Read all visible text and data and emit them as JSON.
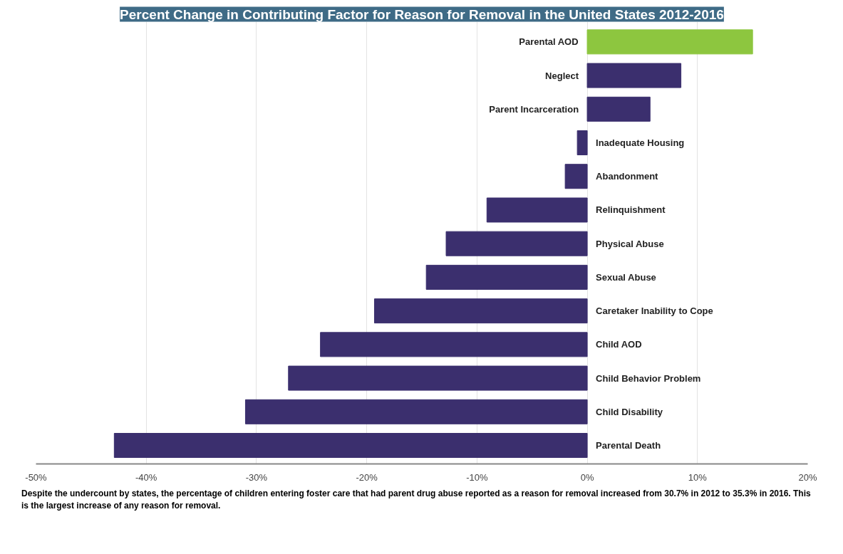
{
  "chart_data": {
    "type": "bar",
    "orientation": "horizontal",
    "title": "Percent Change in Contributing Factor for Reason for Removal in the United States 2012-2016",
    "categories": [
      "Parental AOD",
      "Neglect",
      "Parent Incarceration",
      "Inadequate Housing",
      "Abandonment",
      "Relinquishment",
      "Physical Abuse",
      "Sexual Abuse",
      "Caretaker Inability to Cope",
      "Child AOD",
      "Child Behavior Problem",
      "Child Disability",
      "Parental Death"
    ],
    "values": [
      15.0,
      8.5,
      5.7,
      -0.9,
      -2.0,
      -9.1,
      -12.8,
      -14.6,
      -19.3,
      -24.2,
      -27.1,
      -31.0,
      -42.9
    ],
    "colors": [
      "#8dc63f",
      "#3b2f6e",
      "#3b2f6e",
      "#3b2f6e",
      "#3b2f6e",
      "#3b2f6e",
      "#3b2f6e",
      "#3b2f6e",
      "#3b2f6e",
      "#3b2f6e",
      "#3b2f6e",
      "#3b2f6e",
      "#3b2f6e"
    ],
    "xlim": [
      -50,
      20
    ],
    "xticks": [
      {
        "value": -50,
        "label": "-50%"
      },
      {
        "value": -40,
        "label": "-40%"
      },
      {
        "value": -30,
        "label": "-30%"
      },
      {
        "value": -20,
        "label": "-20%"
      },
      {
        "value": -10,
        "label": "-10%"
      },
      {
        "value": 0,
        "label": "0%"
      },
      {
        "value": 10,
        "label": "10%"
      },
      {
        "value": 20,
        "label": "20%"
      }
    ],
    "grid": "x",
    "annotations": [
      "Despite the undercount by states, the percentage of children entering foster care that had parent drug abuse reported as a reason for removal increased from 30.7% in 2012 to 35.3% in 2016. This is the largest increase of any reason for removal."
    ]
  }
}
